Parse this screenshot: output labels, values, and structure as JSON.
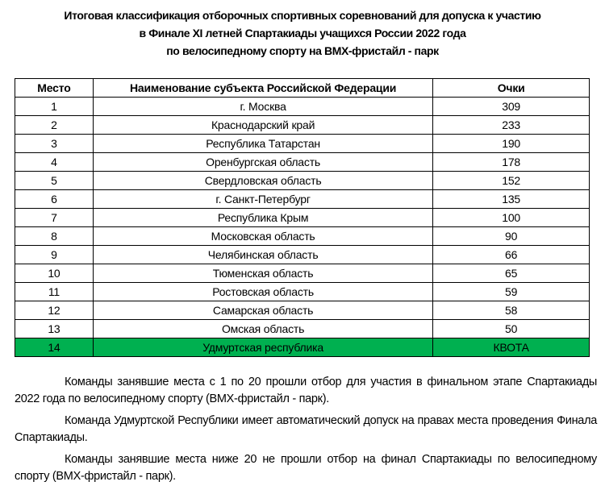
{
  "title": [
    "Итоговая классификация отборочных спортивных соревнований для допуска к участию",
    "в Финале XI летней Спартакиады учащихся России 2022 года",
    "по велосипедному спорту на ВМХ-фристайл - парк"
  ],
  "table": {
    "headers": [
      "Место",
      "Наименование субъекта Российской Федерации",
      "Очки"
    ],
    "rows": [
      [
        "1",
        "г. Москва",
        "309"
      ],
      [
        "2",
        "Краснодарский край",
        "233"
      ],
      [
        "3",
        "Республика Татарстан",
        "190"
      ],
      [
        "4",
        "Оренбургская область",
        "178"
      ],
      [
        "5",
        "Свердловская область",
        "152"
      ],
      [
        "6",
        "г. Санкт-Петербург",
        "135"
      ],
      [
        "7",
        "Республика Крым",
        "100"
      ],
      [
        "8",
        "Московская область",
        "90"
      ],
      [
        "9",
        "Челябинская область",
        "66"
      ],
      [
        "10",
        "Тюменская область",
        "65"
      ],
      [
        "11",
        "Ростовская область",
        "59"
      ],
      [
        "12",
        "Самарская область",
        "58"
      ],
      [
        "13",
        "Омская область",
        "50"
      ],
      [
        "14",
        "Удмуртская республика",
        "КВОТА"
      ]
    ],
    "highlight_color": "#00b050"
  },
  "notes": [
    "Команды занявшие места с 1 по 20 прошли отбор для участия в финальном этапе Спартакиады 2022 года по велосипедному спорту (ВМХ-фристайл - парк).",
    "Команда Удмуртской Республики имеет автоматический допуск на правах места проведения Финала Спартакиады.",
    "Команды занявшие места ниже 20 не прошли отбор на финал Спартакиады по велосипедному спорту (ВМХ-фристайл - парк)."
  ]
}
